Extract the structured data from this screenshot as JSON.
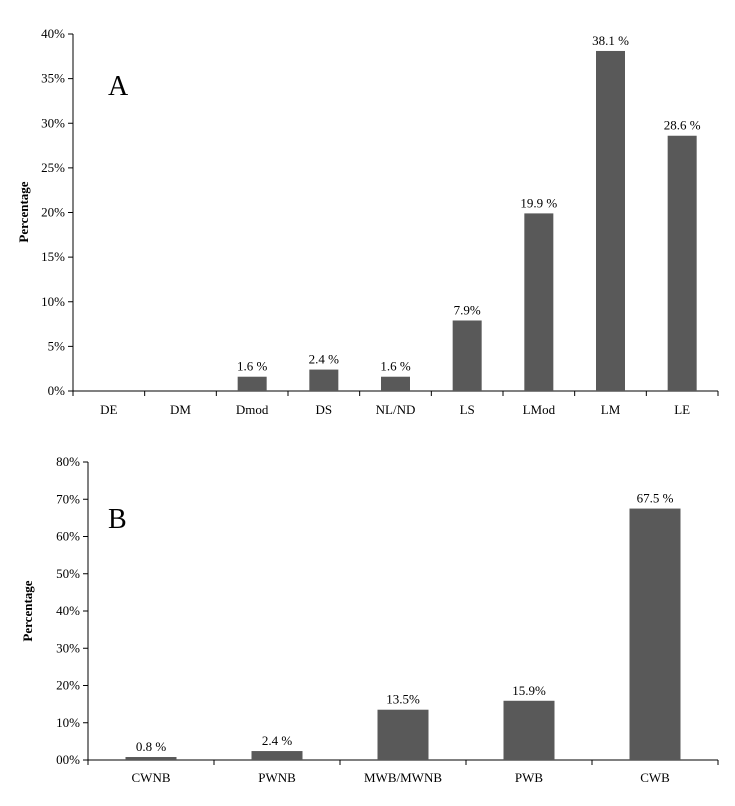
{
  "chart_data": [
    {
      "type": "bar",
      "panel_label": "A",
      "ylabel": "Percentage",
      "ylim": [
        0,
        40
      ],
      "ytick_labels": [
        "0%",
        "5%",
        "10%",
        "15%",
        "20%",
        "25%",
        "30%",
        "35%",
        "40%"
      ],
      "categories": [
        "DE",
        "DM",
        "Dmod",
        "DS",
        "NL/ND",
        "LS",
        "LMod",
        "LM",
        "LE"
      ],
      "values": [
        0,
        0,
        1.6,
        2.4,
        1.6,
        7.9,
        19.9,
        38.1,
        28.6
      ],
      "data_labels": [
        "",
        "",
        "1.6 %",
        "2.4 %",
        "1.6 %",
        "7.9%",
        "19.9 %",
        "38.1 %",
        "28.6 %"
      ],
      "bar_color": "#595959",
      "grid": false
    },
    {
      "type": "bar",
      "panel_label": "B",
      "ylabel": "Percentage",
      "ylim": [
        0,
        80
      ],
      "ytick_labels": [
        "00%",
        "10%",
        "20%",
        "30%",
        "40%",
        "50%",
        "60%",
        "70%",
        "80%"
      ],
      "categories": [
        "CWNB",
        "PWNB",
        "MWB/MWNB",
        "PWB",
        "CWB"
      ],
      "values": [
        0.8,
        2.4,
        13.5,
        15.9,
        67.5
      ],
      "data_labels": [
        "0.8 %",
        "2.4 %",
        "13.5%",
        "15.9%",
        "67.5 %"
      ],
      "bar_color": "#595959",
      "grid": false
    }
  ]
}
